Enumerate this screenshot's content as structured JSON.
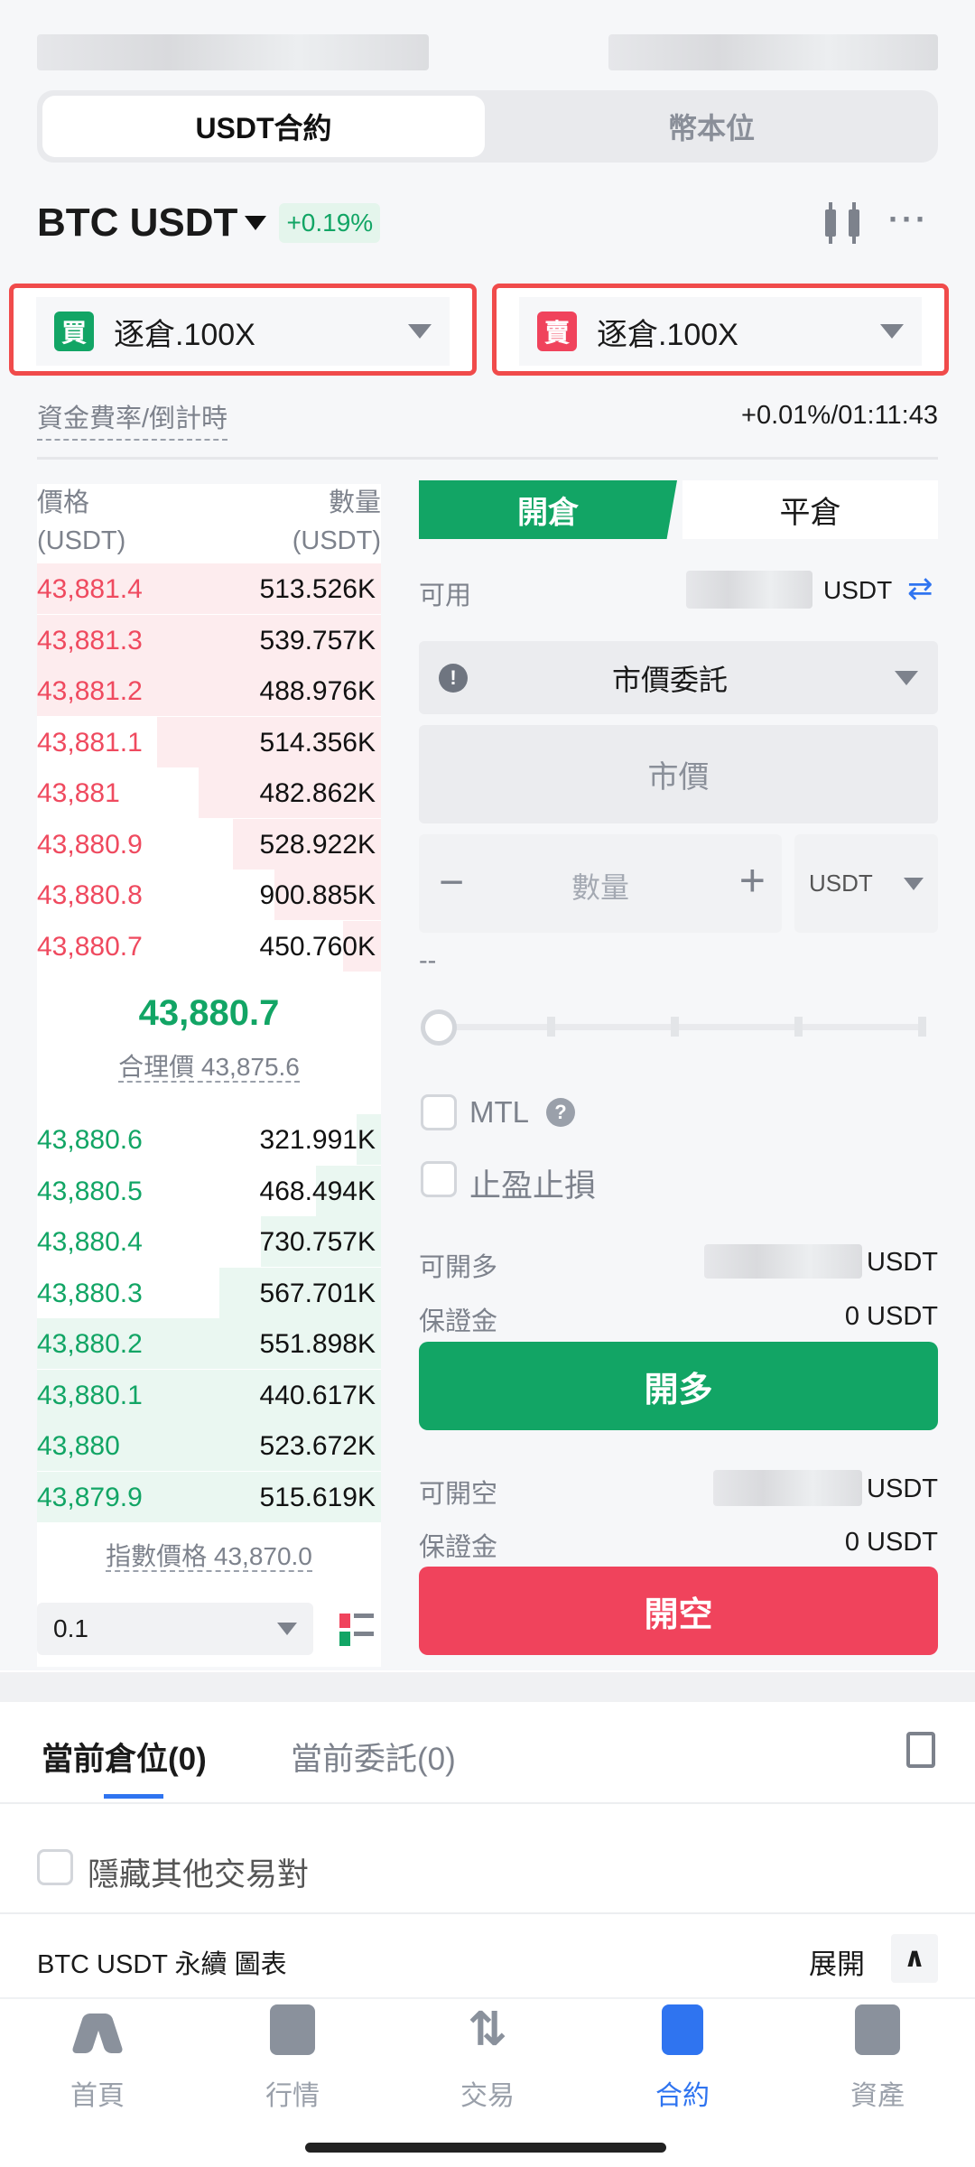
{
  "tabs": {
    "usdt": "USDT合約",
    "coin": "幣本位"
  },
  "header": {
    "symbol": "BTC USDT",
    "change": "+0.19%"
  },
  "leverage": {
    "buy_badge": "買",
    "buy": "逐倉.100X",
    "sell_badge": "賣",
    "sell": "逐倉.100X"
  },
  "funding": {
    "label": "資金費率/倒計時",
    "value": "+0.01%/01:11:43"
  },
  "orderbook": {
    "price_header": "價格",
    "price_unit": "(USDT)",
    "qty_header": "數量",
    "qty_unit": "(USDT)",
    "asks": [
      {
        "price": "43,881.4",
        "qty": "513.526K",
        "depth": 1.0
      },
      {
        "price": "43,881.3",
        "qty": "539.757K",
        "depth": 1.0
      },
      {
        "price": "43,881.2",
        "qty": "488.976K",
        "depth": 1.0
      },
      {
        "price": "43,881.1",
        "qty": "514.356K",
        "depth": 0.65
      },
      {
        "price": "43,881",
        "qty": "482.862K",
        "depth": 0.53
      },
      {
        "price": "43,880.9",
        "qty": "528.922K",
        "depth": 0.43
      },
      {
        "price": "43,880.8",
        "qty": "900.885K",
        "depth": 0.31
      },
      {
        "price": "43,880.7",
        "qty": "450.760K",
        "depth": 0.11
      }
    ],
    "last_price": "43,880.7",
    "fair_label": "合理價",
    "fair_price": "43,875.6",
    "bids": [
      {
        "price": "43,880.6",
        "qty": "321.991K",
        "depth": 0.07
      },
      {
        "price": "43,880.5",
        "qty": "468.494K",
        "depth": 0.19
      },
      {
        "price": "43,880.4",
        "qty": "730.757K",
        "depth": 0.35
      },
      {
        "price": "43,880.3",
        "qty": "567.701K",
        "depth": 0.47
      },
      {
        "price": "43,880.2",
        "qty": "551.898K",
        "depth": 1.0
      },
      {
        "price": "43,880.1",
        "qty": "440.617K",
        "depth": 1.0
      },
      {
        "price": "43,880",
        "qty": "523.672K",
        "depth": 1.0
      },
      {
        "price": "43,879.9",
        "qty": "515.619K",
        "depth": 1.0
      }
    ],
    "index_label": "指數價格",
    "index_price": "43,870.0",
    "precision": "0.1"
  },
  "order": {
    "open_tab": "開倉",
    "close_tab": "平倉",
    "available_label": "可用",
    "available_unit": "USDT",
    "order_type": "市價委託",
    "price_placeholder": "市價",
    "qty_placeholder": "數量",
    "qty_unit": "USDT",
    "estimate": "--",
    "slider_percent": 0,
    "mtl": "MTL",
    "tpsl": "止盈止損",
    "long_max_label": "可開多",
    "long_max_unit": "USDT",
    "long_margin_label": "保證金",
    "long_margin": "0 USDT",
    "long_button": "開多",
    "short_max_label": "可開空",
    "short_max_unit": "USDT",
    "short_margin_label": "保證金",
    "short_margin": "0 USDT",
    "short_button": "開空"
  },
  "positions": {
    "tab_positions": "當前倉位(0)",
    "tab_orders": "當前委託(0)",
    "hide_others": "隱藏其他交易對",
    "chart_title": "BTC USDT 永續 圖表",
    "expand": "展開"
  },
  "nav": [
    {
      "label": "首頁"
    },
    {
      "label": "行情"
    },
    {
      "label": "交易"
    },
    {
      "label": "合約"
    },
    {
      "label": "資產"
    }
  ],
  "colors": {
    "green": "#12a565",
    "red": "#f0435c",
    "accent": "#2f74f0"
  }
}
